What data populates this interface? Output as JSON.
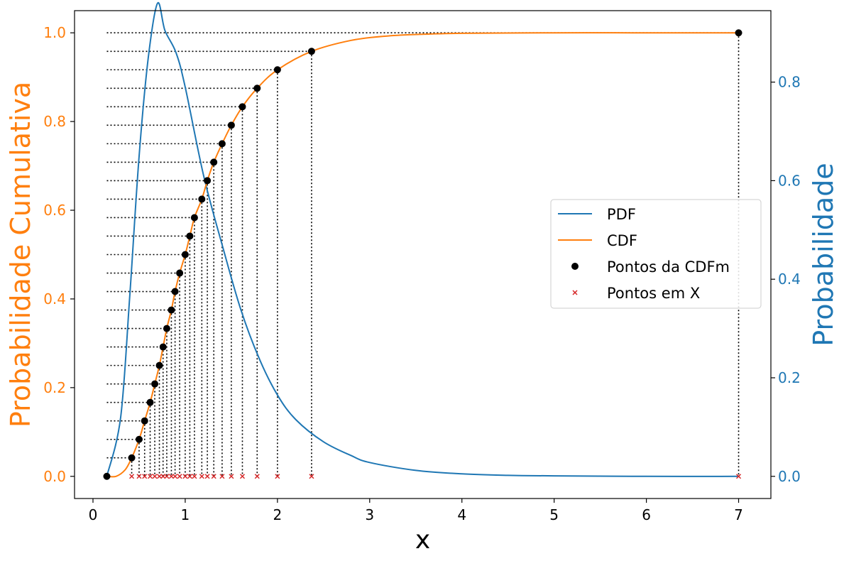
{
  "chart_data": {
    "type": "line",
    "xlabel": "x",
    "ylabel_left": "Probabilidade Cumulativa",
    "ylabel_right": "Probabilidade",
    "xlim": [
      -0.2,
      7.35
    ],
    "ylim_left": [
      -0.05,
      1.05
    ],
    "ylim_right": [
      -0.045,
      0.945
    ],
    "x_ticks": [
      0,
      1,
      2,
      3,
      4,
      5,
      6,
      7
    ],
    "y_left_ticks": [
      0.0,
      0.2,
      0.4,
      0.6,
      0.8,
      1.0
    ],
    "y_right_ticks": [
      0.0,
      0.2,
      0.4,
      0.6,
      0.8
    ],
    "grid": false,
    "legend_position": "center-right",
    "legend": [
      "PDF",
      "CDF",
      "Pontos da CDFm",
      "Pontos em X"
    ],
    "colors": {
      "pdf": "#1f77b4",
      "cdf": "#ff7f0e",
      "points": "#000000",
      "x_markers": "#d62728",
      "left_axis_text": "#ff7f0e",
      "right_axis_text": "#1f77b4"
    },
    "series": [
      {
        "name": "PDF",
        "axis": "right",
        "x": [
          0.15,
          0.3,
          0.4,
          0.5,
          0.6,
          0.7,
          0.78,
          0.9,
          1.0,
          1.2,
          1.4,
          1.6,
          1.8,
          2.0,
          2.2,
          2.5,
          2.8,
          3.0,
          3.5,
          4.0,
          4.5,
          5.0,
          6.0,
          7.0
        ],
        "values": [
          0.0,
          0.12,
          0.37,
          0.65,
          0.85,
          0.96,
          0.905,
          0.86,
          0.79,
          0.61,
          0.47,
          0.34,
          0.24,
          0.165,
          0.115,
          0.07,
          0.042,
          0.028,
          0.012,
          0.005,
          0.002,
          0.001,
          0.0,
          0.0
        ]
      },
      {
        "name": "CDF",
        "axis": "left",
        "x": [
          0.15,
          0.25,
          0.35,
          0.42,
          0.5,
          0.56,
          0.62,
          0.67,
          0.72,
          0.76,
          0.8,
          0.85,
          0.89,
          0.94,
          1.0,
          1.05,
          1.1,
          1.18,
          1.24,
          1.31,
          1.4,
          1.5,
          1.62,
          1.78,
          2.0,
          2.37,
          2.8,
          3.2,
          3.6,
          4.0,
          5.0,
          6.0,
          7.0
        ],
        "values": [
          0.0,
          0.0,
          0.015,
          0.0417,
          0.0833,
          0.125,
          0.1667,
          0.2083,
          0.25,
          0.2917,
          0.3333,
          0.375,
          0.4167,
          0.4583,
          0.5,
          0.5417,
          0.5833,
          0.625,
          0.6667,
          0.7083,
          0.75,
          0.7917,
          0.8333,
          0.875,
          0.9167,
          0.9583,
          0.983,
          0.993,
          0.997,
          0.999,
          1.0,
          1.0,
          1.0
        ]
      },
      {
        "name": "Pontos da CDFm",
        "axis": "left",
        "x": [
          0.15,
          0.42,
          0.5,
          0.56,
          0.62,
          0.67,
          0.72,
          0.76,
          0.8,
          0.85,
          0.89,
          0.94,
          1.0,
          1.05,
          1.1,
          1.18,
          1.24,
          1.31,
          1.4,
          1.5,
          1.62,
          1.78,
          2.0,
          2.37,
          7.0
        ],
        "values": [
          0.0,
          0.0417,
          0.0833,
          0.125,
          0.1667,
          0.2083,
          0.25,
          0.2917,
          0.3333,
          0.375,
          0.4167,
          0.4583,
          0.5,
          0.5417,
          0.5833,
          0.625,
          0.6667,
          0.7083,
          0.75,
          0.7917,
          0.8333,
          0.875,
          0.9167,
          0.9583,
          1.0
        ]
      },
      {
        "name": "Pontos em X",
        "axis": "left",
        "x": [
          0.15,
          0.42,
          0.5,
          0.56,
          0.62,
          0.67,
          0.72,
          0.76,
          0.8,
          0.85,
          0.89,
          0.94,
          1.0,
          1.05,
          1.1,
          1.18,
          1.24,
          1.31,
          1.4,
          1.5,
          1.62,
          1.78,
          2.0,
          2.37,
          7.0
        ],
        "values": [
          0,
          0,
          0,
          0,
          0,
          0,
          0,
          0,
          0,
          0,
          0,
          0,
          0,
          0,
          0,
          0,
          0,
          0,
          0,
          0,
          0,
          0,
          0,
          0,
          0
        ]
      }
    ]
  }
}
